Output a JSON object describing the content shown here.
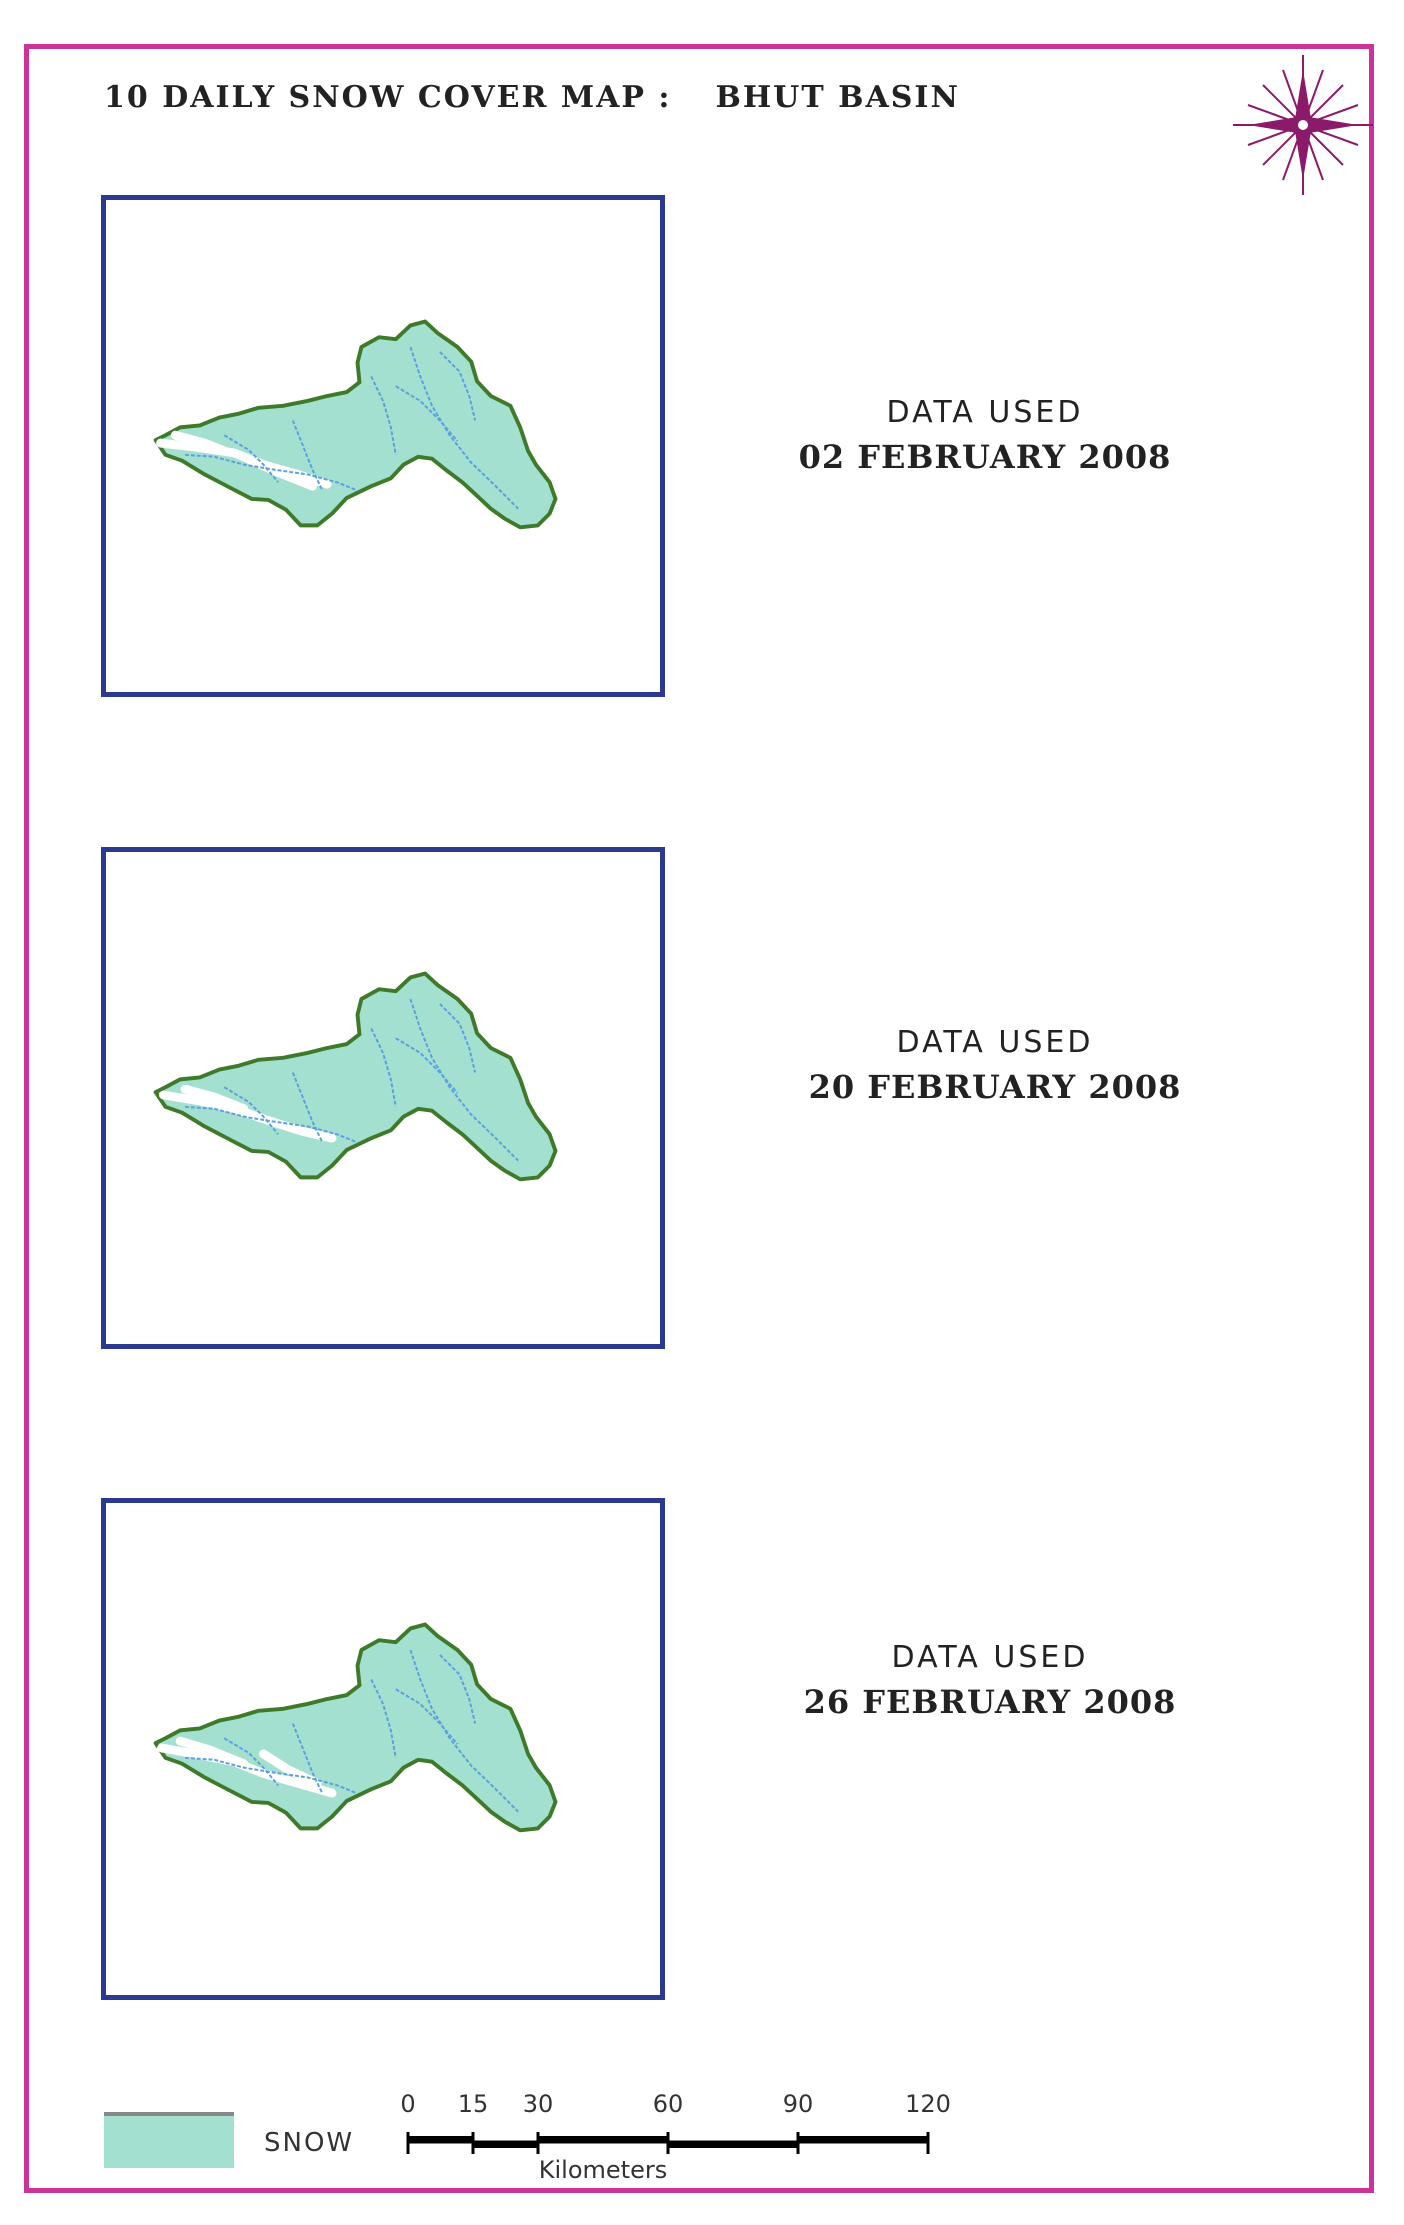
{
  "title": {
    "main": "10 DAILY SNOW COVER MAP :",
    "basin": "BHUT BASIN"
  },
  "north_arrow": {
    "icon": "compass-rose-icon",
    "color": "#8b1a6b"
  },
  "panels": [
    {
      "label": "DATA USED",
      "date": "02 FEBRUARY 2008"
    },
    {
      "label": "DATA USED",
      "date": "20 FEBRUARY 2008"
    },
    {
      "label": "DATA USED",
      "date": "26 FEBRUARY 2008"
    }
  ],
  "colors": {
    "page_border": "#cc3399",
    "map_frame": "#2b3a8f",
    "basin_fill": "#a3e0d0",
    "basin_outline": "#3f7a2a",
    "river": "#5aa0e0",
    "snow": "#ffffff"
  },
  "legend": {
    "label": "SNOW",
    "color": "#a3e0d0"
  },
  "scale_bar": {
    "ticks": [
      "0",
      "15",
      "30",
      "60",
      "90",
      "120"
    ],
    "unit": "Kilometers"
  }
}
